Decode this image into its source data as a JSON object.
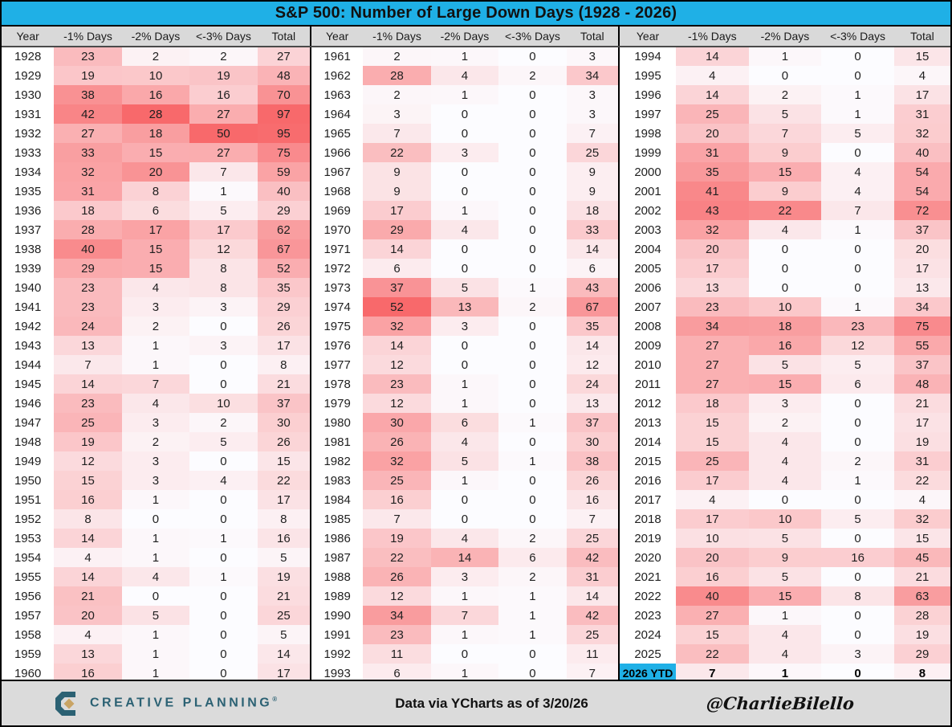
{
  "title_bar": "S&P 500: Number of Large Down Days (1928 - 2026)",
  "colors": {
    "accent_cyan": "#1FB0E6",
    "heat_low": "#FCFCFF",
    "heat_high": "#F8696B",
    "header_bg": "#D9D9D9",
    "footer_bg": "#DBDBDB",
    "logo_teal": "#2B6173",
    "logo_gold": "#C9A464"
  },
  "footer": {
    "brand": "CREATIVE PLANNING",
    "registered": "®",
    "source": "Data via YCharts as of 3/20/26",
    "handle": "@CharlieBilello"
  },
  "chart_data": {
    "type": "heatmap-table",
    "title": "S&P 500: Number of Large Down Days (1928 - 2026)",
    "columns": [
      "Year",
      "-1% Days",
      "-2% Days",
      "<-3% Days",
      "Total"
    ],
    "color_scale": {
      "min_value": 0,
      "min_color": "#FCFCFF",
      "max_color": "#F8696B",
      "scope": "per-column"
    },
    "groups": [
      {
        "rows": [
          [
            "1928",
            23,
            2,
            2,
            27
          ],
          [
            "1929",
            19,
            10,
            19,
            48
          ],
          [
            "1930",
            38,
            16,
            16,
            70
          ],
          [
            "1931",
            42,
            28,
            27,
            97
          ],
          [
            "1932",
            27,
            18,
            50,
            95
          ],
          [
            "1933",
            33,
            15,
            27,
            75
          ],
          [
            "1934",
            32,
            20,
            7,
            59
          ],
          [
            "1935",
            31,
            8,
            1,
            40
          ],
          [
            "1936",
            18,
            6,
            5,
            29
          ],
          [
            "1937",
            28,
            17,
            17,
            62
          ],
          [
            "1938",
            40,
            15,
            12,
            67
          ],
          [
            "1939",
            29,
            15,
            8,
            52
          ],
          [
            "1940",
            23,
            4,
            8,
            35
          ],
          [
            "1941",
            23,
            3,
            3,
            29
          ],
          [
            "1942",
            24,
            2,
            0,
            26
          ],
          [
            "1943",
            13,
            1,
            3,
            17
          ],
          [
            "1944",
            7,
            1,
            0,
            8
          ],
          [
            "1945",
            14,
            7,
            0,
            21
          ],
          [
            "1946",
            23,
            4,
            10,
            37
          ],
          [
            "1947",
            25,
            3,
            2,
            30
          ],
          [
            "1948",
            19,
            2,
            5,
            26
          ],
          [
            "1949",
            12,
            3,
            0,
            15
          ],
          [
            "1950",
            15,
            3,
            4,
            22
          ],
          [
            "1951",
            16,
            1,
            0,
            17
          ],
          [
            "1952",
            8,
            0,
            0,
            8
          ],
          [
            "1953",
            14,
            1,
            1,
            16
          ],
          [
            "1954",
            4,
            1,
            0,
            5
          ],
          [
            "1955",
            14,
            4,
            1,
            19
          ],
          [
            "1956",
            21,
            0,
            0,
            21
          ],
          [
            "1957",
            20,
            5,
            0,
            25
          ],
          [
            "1958",
            4,
            1,
            0,
            5
          ],
          [
            "1959",
            13,
            1,
            0,
            14
          ],
          [
            "1960",
            16,
            1,
            0,
            17
          ]
        ]
      },
      {
        "rows": [
          [
            "1961",
            2,
            1,
            0,
            3
          ],
          [
            "1962",
            28,
            4,
            2,
            34
          ],
          [
            "1963",
            2,
            1,
            0,
            3
          ],
          [
            "1964",
            3,
            0,
            0,
            3
          ],
          [
            "1965",
            7,
            0,
            0,
            7
          ],
          [
            "1966",
            22,
            3,
            0,
            25
          ],
          [
            "1967",
            9,
            0,
            0,
            9
          ],
          [
            "1968",
            9,
            0,
            0,
            9
          ],
          [
            "1969",
            17,
            1,
            0,
            18
          ],
          [
            "1970",
            29,
            4,
            0,
            33
          ],
          [
            "1971",
            14,
            0,
            0,
            14
          ],
          [
            "1972",
            6,
            0,
            0,
            6
          ],
          [
            "1973",
            37,
            5,
            1,
            43
          ],
          [
            "1974",
            52,
            13,
            2,
            67
          ],
          [
            "1975",
            32,
            3,
            0,
            35
          ],
          [
            "1976",
            14,
            0,
            0,
            14
          ],
          [
            "1977",
            12,
            0,
            0,
            12
          ],
          [
            "1978",
            23,
            1,
            0,
            24
          ],
          [
            "1979",
            12,
            1,
            0,
            13
          ],
          [
            "1980",
            30,
            6,
            1,
            37
          ],
          [
            "1981",
            26,
            4,
            0,
            30
          ],
          [
            "1982",
            32,
            5,
            1,
            38
          ],
          [
            "1983",
            25,
            1,
            0,
            26
          ],
          [
            "1984",
            16,
            0,
            0,
            16
          ],
          [
            "1985",
            7,
            0,
            0,
            7
          ],
          [
            "1986",
            19,
            4,
            2,
            25
          ],
          [
            "1987",
            22,
            14,
            6,
            42
          ],
          [
            "1988",
            26,
            3,
            2,
            31
          ],
          [
            "1989",
            12,
            1,
            1,
            14
          ],
          [
            "1990",
            34,
            7,
            1,
            42
          ],
          [
            "1991",
            23,
            1,
            1,
            25
          ],
          [
            "1992",
            11,
            0,
            0,
            11
          ],
          [
            "1993",
            6,
            1,
            0,
            7
          ]
        ]
      },
      {
        "rows": [
          [
            "1994",
            14,
            1,
            0,
            15
          ],
          [
            "1995",
            4,
            0,
            0,
            4
          ],
          [
            "1996",
            14,
            2,
            1,
            17
          ],
          [
            "1997",
            25,
            5,
            1,
            31
          ],
          [
            "1998",
            20,
            7,
            5,
            32
          ],
          [
            "1999",
            31,
            9,
            0,
            40
          ],
          [
            "2000",
            35,
            15,
            4,
            54
          ],
          [
            "2001",
            41,
            9,
            4,
            54
          ],
          [
            "2002",
            43,
            22,
            7,
            72
          ],
          [
            "2003",
            32,
            4,
            1,
            37
          ],
          [
            "2004",
            20,
            0,
            0,
            20
          ],
          [
            "2005",
            17,
            0,
            0,
            17
          ],
          [
            "2006",
            13,
            0,
            0,
            13
          ],
          [
            "2007",
            23,
            10,
            1,
            34
          ],
          [
            "2008",
            34,
            18,
            23,
            75
          ],
          [
            "2009",
            27,
            16,
            12,
            55
          ],
          [
            "2010",
            27,
            5,
            5,
            37
          ],
          [
            "2011",
            27,
            15,
            6,
            48
          ],
          [
            "2012",
            18,
            3,
            0,
            21
          ],
          [
            "2013",
            15,
            2,
            0,
            17
          ],
          [
            "2014",
            15,
            4,
            0,
            19
          ],
          [
            "2015",
            25,
            4,
            2,
            31
          ],
          [
            "2016",
            17,
            4,
            1,
            22
          ],
          [
            "2017",
            4,
            0,
            0,
            4
          ],
          [
            "2018",
            17,
            10,
            5,
            32
          ],
          [
            "2019",
            10,
            5,
            0,
            15
          ],
          [
            "2020",
            20,
            9,
            16,
            45
          ],
          [
            "2021",
            16,
            5,
            0,
            21
          ],
          [
            "2022",
            40,
            15,
            8,
            63
          ],
          [
            "2023",
            27,
            1,
            0,
            28
          ],
          [
            "2024",
            15,
            4,
            0,
            19
          ],
          [
            "2025",
            22,
            4,
            3,
            29
          ],
          [
            "2026 YTD",
            7,
            1,
            0,
            8
          ]
        ]
      }
    ]
  }
}
